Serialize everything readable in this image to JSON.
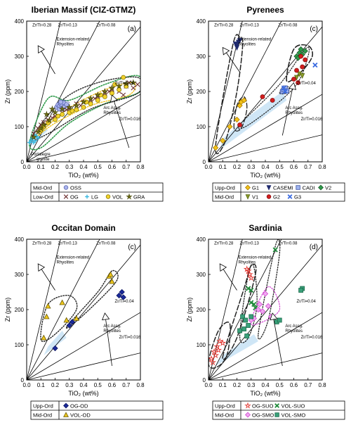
{
  "chart_data": [
    {
      "type": "scatter",
      "title": "Iberian Massif (CIZ-GTMZ)",
      "panel_label": "(a)",
      "xlabel": "TiO₂ (wt%)",
      "ylabel": "Zr (ppm)",
      "xlim": [
        0,
        0.8
      ],
      "ylim": [
        0,
        400
      ],
      "x_ticks": [
        "0.0",
        "0.1",
        "0.2",
        "0.3",
        "0.4",
        "0.5",
        "0.6",
        "0.7",
        "0.8"
      ],
      "y_ticks": [
        "0",
        "100",
        "200",
        "300",
        "400"
      ],
      "reference_lines": [
        "Zr/Ti=0.28",
        "Zr/Ti=0.13",
        "Zr/Ti=0.08",
        "Zr/Ti=0.04",
        "Zr/Ti=0.016"
      ],
      "annotations": [
        "Extension-related Rhyolites",
        "Arc Assg. Rhyolites",
        "Portalegre granite"
      ],
      "legend": {
        "rows": [
          {
            "group": "Mid-Ord",
            "items": [
              {
                "name": "OSS",
                "color": "#aab4ee"
              }
            ]
          },
          {
            "group": "Low-Ord",
            "items": [
              {
                "name": "OG",
                "color": "#6e2f2f"
              },
              {
                "name": "LG",
                "color": "#3ab8e0"
              },
              {
                "name": "VOL",
                "color": "#f2d22c"
              },
              {
                "name": "GRA",
                "color": "#7a7a18"
              }
            ]
          }
        ]
      },
      "series": [
        {
          "name": "OSS",
          "points": [
            [
              0.21,
              155
            ],
            [
              0.22,
              162
            ],
            [
              0.23,
              158
            ],
            [
              0.24,
              165
            ],
            [
              0.25,
              160
            ],
            [
              0.25,
              152
            ],
            [
              0.26,
              168
            ],
            [
              0.27,
              158
            ],
            [
              0.28,
              163
            ],
            [
              0.23,
              150
            ],
            [
              0.26,
              155
            ],
            [
              0.24,
              170
            ]
          ]
        },
        {
          "name": "OG",
          "points": [
            [
              0.05,
              80
            ],
            [
              0.1,
              105
            ],
            [
              0.15,
              120
            ],
            [
              0.2,
              130
            ],
            [
              0.25,
              140
            ],
            [
              0.3,
              150
            ],
            [
              0.35,
              165
            ],
            [
              0.4,
              170
            ],
            [
              0.45,
              175
            ],
            [
              0.5,
              185
            ],
            [
              0.55,
              195
            ],
            [
              0.6,
              205
            ],
            [
              0.65,
              200
            ],
            [
              0.7,
              215
            ],
            [
              0.75,
              210
            ],
            [
              0.78,
              220
            ],
            [
              0.72,
              225
            ],
            [
              0.68,
              190
            ],
            [
              0.58,
              200
            ],
            [
              0.48,
              180
            ],
            [
              0.38,
              160
            ],
            [
              0.28,
              148
            ],
            [
              0.18,
              125
            ],
            [
              0.12,
              112
            ],
            [
              0.08,
              95
            ]
          ]
        },
        {
          "name": "LG",
          "points": [
            [
              0.02,
              55
            ],
            [
              0.03,
              60
            ],
            [
              0.04,
              65
            ],
            [
              0.05,
              70
            ],
            [
              0.06,
              75
            ],
            [
              0.07,
              72
            ],
            [
              0.08,
              68
            ],
            [
              0.05,
              55
            ],
            [
              0.06,
              60
            ]
          ]
        },
        {
          "name": "VOL",
          "points": [
            [
              0.1,
              90
            ],
            [
              0.15,
              110
            ],
            [
              0.2,
              120
            ],
            [
              0.25,
              135
            ],
            [
              0.3,
              140
            ],
            [
              0.35,
              148
            ],
            [
              0.4,
              155
            ],
            [
              0.45,
              165
            ],
            [
              0.5,
              175
            ],
            [
              0.55,
              185
            ],
            [
              0.6,
              195
            ],
            [
              0.65,
              205
            ],
            [
              0.7,
              215
            ],
            [
              0.68,
              240
            ],
            [
              0.62,
              220
            ],
            [
              0.52,
              190
            ],
            [
              0.42,
              170
            ],
            [
              0.32,
              145
            ],
            [
              0.22,
              130
            ],
            [
              0.12,
              100
            ]
          ]
        },
        {
          "name": "GRA",
          "points": [
            [
              0.05,
              70
            ],
            [
              0.08,
              85
            ],
            [
              0.12,
              105
            ],
            [
              0.16,
              118
            ],
            [
              0.2,
              140
            ],
            [
              0.25,
              150
            ],
            [
              0.3,
              155
            ],
            [
              0.35,
              160
            ],
            [
              0.4,
              170
            ],
            [
              0.45,
              180
            ],
            [
              0.5,
              190
            ],
            [
              0.55,
              200
            ],
            [
              0.6,
              210
            ],
            [
              0.65,
              215
            ],
            [
              0.7,
              222
            ],
            [
              0.75,
              225
            ],
            [
              0.1,
              95
            ],
            [
              0.14,
              135
            ],
            [
              0.18,
              150
            ]
          ]
        }
      ]
    },
    {
      "type": "scatter",
      "title": "Pyrenees",
      "panel_label": "(c)",
      "xlabel": "TiO₂ (wt%)",
      "ylabel": "Zr (ppm)",
      "xlim": [
        0,
        0.8
      ],
      "ylim": [
        0,
        400
      ],
      "x_ticks": [
        "0.0",
        "0.1",
        "0.2",
        "0.3",
        "0.4",
        "0.5",
        "0.6",
        "0.7",
        "0.8"
      ],
      "y_ticks": [
        "0",
        "100",
        "200",
        "300",
        "400"
      ],
      "reference_lines": [
        "Zr/Ti=0.28",
        "Zr/Ti=0.13",
        "Zr/Ti=0.08",
        "Zr/Ti=0.04",
        "Zr/Ti=0.016"
      ],
      "annotations": [
        "Extension-related Rhyolites",
        "Arc Assg. Rhyolites"
      ],
      "legend": {
        "rows": [
          {
            "group": "Upp-Ord",
            "items": [
              {
                "name": "G1",
                "color": "#f2c21a"
              },
              {
                "name": "CASEMI",
                "color": "#1f2a6e"
              },
              {
                "name": "CADI",
                "color": "#9fb4ee"
              },
              {
                "name": "V2",
                "color": "#2e9a4a"
              }
            ]
          },
          {
            "group": "Mid-Ord",
            "items": [
              {
                "name": "V1",
                "color": "#8a9a2a"
              },
              {
                "name": "G2",
                "color": "#d21e1e"
              },
              {
                "name": "G3",
                "color": "#3a6ae0"
              }
            ]
          }
        ]
      },
      "series": [
        {
          "name": "G1",
          "points": [
            [
              0.05,
              40
            ],
            [
              0.1,
              60
            ],
            [
              0.15,
              100
            ],
            [
              0.2,
              120
            ],
            [
              0.22,
              160
            ],
            [
              0.23,
              170
            ],
            [
              0.25,
              175
            ]
          ]
        },
        {
          "name": "CASEMI",
          "points": [
            [
              0.19,
              335
            ],
            [
              0.2,
              330
            ],
            [
              0.21,
              340
            ],
            [
              0.2,
              325
            ],
            [
              0.22,
              345
            ]
          ]
        },
        {
          "name": "CADI",
          "points": [
            [
              0.52,
              200
            ],
            [
              0.53,
              205
            ],
            [
              0.54,
              210
            ],
            [
              0.55,
              202
            ]
          ]
        },
        {
          "name": "V2",
          "points": [
            [
              0.62,
              300
            ],
            [
              0.64,
              310
            ],
            [
              0.66,
              305
            ],
            [
              0.68,
              315
            ],
            [
              0.65,
              320
            ],
            [
              0.63,
              295
            ]
          ]
        },
        {
          "name": "V1",
          "points": [
            [
              0.62,
              240
            ],
            [
              0.64,
              250
            ],
            [
              0.66,
              245
            ]
          ]
        },
        {
          "name": "G2",
          "points": [
            [
              0.22,
              105
            ],
            [
              0.38,
              185
            ],
            [
              0.45,
              175
            ],
            [
              0.6,
              235
            ],
            [
              0.63,
              225
            ],
            [
              0.65,
              300
            ],
            [
              0.66,
              270
            ],
            [
              0.68,
              290
            ],
            [
              0.62,
              260
            ]
          ]
        },
        {
          "name": "G3",
          "points": [
            [
              0.53,
              210
            ],
            [
              0.54,
              200
            ],
            [
              0.75,
              275
            ]
          ]
        }
      ]
    },
    {
      "type": "scatter",
      "title": "Occitan Domain",
      "panel_label": "(c)",
      "xlabel": "TiO₂ (wt%)",
      "ylabel": "Zr (ppm)",
      "xlim": [
        0,
        0.8
      ],
      "ylim": [
        0,
        400
      ],
      "x_ticks": [
        "0.0",
        "0.1",
        "0.2",
        "0.3",
        "0.4",
        "0.5",
        "0.6",
        "0.7",
        "0.8"
      ],
      "y_ticks": [
        "0",
        "100",
        "200",
        "300",
        "400"
      ],
      "reference_lines": [
        "Zr/Ti=0.28",
        "Zr/Ti=0.13",
        "Zr/Ti=0.08",
        "Zr/Ti=0.04",
        "Zr/Ti=0.016"
      ],
      "annotations": [
        "Extension-related Rhyolites",
        "Arc Assg. Rhyolites"
      ],
      "legend": {
        "rows": [
          {
            "group": "Upp-Ord",
            "items": [
              {
                "name": "OG-OD",
                "color": "#1a2a9a"
              }
            ]
          },
          {
            "group": "Mid-Ord",
            "items": [
              {
                "name": "VOL-OD",
                "color": "#f0c81e"
              }
            ]
          }
        ]
      },
      "series": [
        {
          "name": "OG-OD",
          "points": [
            [
              0.2,
              90
            ],
            [
              0.3,
              155
            ],
            [
              0.32,
              165
            ],
            [
              0.65,
              240
            ],
            [
              0.67,
              250
            ],
            [
              0.68,
              235
            ]
          ]
        },
        {
          "name": "VOL-OD",
          "points": [
            [
              0.12,
              120
            ],
            [
              0.14,
              180
            ],
            [
              0.15,
              210
            ],
            [
              0.25,
              220
            ],
            [
              0.28,
              170
            ],
            [
              0.35,
              175
            ],
            [
              0.58,
              295
            ],
            [
              0.59,
              300
            ],
            [
              0.6,
              280
            ]
          ]
        }
      ]
    },
    {
      "type": "scatter",
      "title": "Sardinia",
      "panel_label": "(d)",
      "xlabel": "TiO₂ (wt%)",
      "ylabel": "Zr (ppm)",
      "xlim": [
        0,
        0.8
      ],
      "ylim": [
        0,
        400
      ],
      "x_ticks": [
        "0.0",
        "0.1",
        "0.2",
        "0.3",
        "0.4",
        "0.5",
        "0.6",
        "0.7",
        "0.8"
      ],
      "y_ticks": [
        "0",
        "100",
        "200",
        "300",
        "400"
      ],
      "reference_lines": [
        "Zr/Ti=0.28",
        "Zr/Ti=0.13",
        "Zr/Ti=0.08",
        "Zr/Ti=0.04",
        "Zr/Ti=0.016"
      ],
      "annotations": [
        "Extension-related Rhyolites",
        "Arc Assg. Rhyolites"
      ],
      "legend": {
        "rows": [
          {
            "group": "Upp-Ord",
            "items": [
              {
                "name": "OG-SUO",
                "color": "#e0302a"
              },
              {
                "name": "VOL-SUO",
                "color": "#1f8a3a"
              }
            ]
          },
          {
            "group": "Mid-Ord",
            "items": [
              {
                "name": "OG-SMO",
                "color": "#e866e8"
              },
              {
                "name": "VOL-SMO",
                "color": "#3aa07a"
              }
            ]
          }
        ]
      },
      "series": [
        {
          "name": "OG-SUO",
          "points": [
            [
              0.02,
              60
            ],
            [
              0.04,
              80
            ],
            [
              0.05,
              70
            ],
            [
              0.06,
              95
            ],
            [
              0.08,
              110
            ],
            [
              0.1,
              105
            ],
            [
              0.07,
              85
            ],
            [
              0.03,
              50
            ],
            [
              0.28,
              310
            ],
            [
              0.29,
              300
            ],
            [
              0.3,
              290
            ],
            [
              0.27,
              315
            ]
          ]
        },
        {
          "name": "VOL-SUO",
          "points": [
            [
              0.28,
              260
            ],
            [
              0.3,
              255
            ],
            [
              0.32,
              215
            ],
            [
              0.33,
              205
            ],
            [
              0.3,
              220
            ],
            [
              0.47,
              370
            ]
          ]
        },
        {
          "name": "OG-SMO",
          "points": [
            [
              0.3,
              170
            ],
            [
              0.32,
              175
            ],
            [
              0.35,
              200
            ],
            [
              0.38,
              195
            ],
            [
              0.4,
              245
            ],
            [
              0.42,
              210
            ],
            [
              0.36,
              215
            ],
            [
              0.44,
              180
            ]
          ]
        },
        {
          "name": "VOL-SMO",
          "points": [
            [
              0.24,
              180
            ],
            [
              0.26,
              170
            ],
            [
              0.28,
              155
            ],
            [
              0.22,
              140
            ],
            [
              0.3,
              180
            ],
            [
              0.48,
              165
            ],
            [
              0.5,
              170
            ],
            [
              0.66,
              260
            ],
            [
              0.65,
              255
            ],
            [
              0.27,
              125
            ],
            [
              0.25,
              145
            ]
          ]
        }
      ]
    }
  ]
}
